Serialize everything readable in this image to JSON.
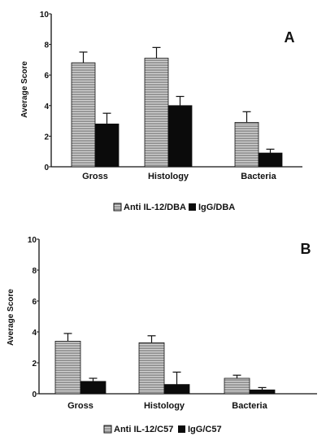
{
  "colors": {
    "anti_fill": "#8f8f8f",
    "anti_stripe": "#d2d2d2",
    "igg_fill": "#0b0b0b",
    "axis": "#111111",
    "background": "#ffffff"
  },
  "chart_data": [
    {
      "type": "bar",
      "panel_label": "A",
      "ylabel": "Average Score",
      "ylim": [
        0,
        10
      ],
      "yticks": [
        "0",
        "2",
        "4",
        "6",
        "8",
        "10"
      ],
      "categories": [
        "Gross",
        "Histology",
        "Bacteria"
      ],
      "error_bars": true,
      "grid": false,
      "legend_position": "bottom-center",
      "series": [
        {
          "name": "Anti IL-12/DBA",
          "pattern": "horizontal-stripes",
          "values": [
            6.8,
            7.1,
            2.9
          ],
          "errors": [
            0.7,
            0.7,
            0.7
          ]
        },
        {
          "name": "IgG/DBA",
          "pattern": "solid-black",
          "values": [
            2.8,
            4.0,
            0.9
          ],
          "errors": [
            0.7,
            0.6,
            0.25
          ]
        }
      ]
    },
    {
      "type": "bar",
      "panel_label": "B",
      "ylabel": "Average Score",
      "ylim": [
        0,
        10
      ],
      "yticks": [
        "0",
        "2",
        "4",
        "6",
        "8",
        "10"
      ],
      "categories": [
        "Gross",
        "Histology",
        "Bacteria"
      ],
      "error_bars": true,
      "grid": false,
      "legend_position": "bottom-center",
      "series": [
        {
          "name": "Anti IL-12/C57",
          "pattern": "horizontal-stripes",
          "values": [
            3.4,
            3.3,
            1.0
          ],
          "errors": [
            0.5,
            0.45,
            0.2
          ]
        },
        {
          "name": "IgG/C57",
          "pattern": "solid-black",
          "values": [
            0.8,
            0.6,
            0.25
          ],
          "errors": [
            0.2,
            0.8,
            0.15
          ]
        }
      ]
    }
  ]
}
